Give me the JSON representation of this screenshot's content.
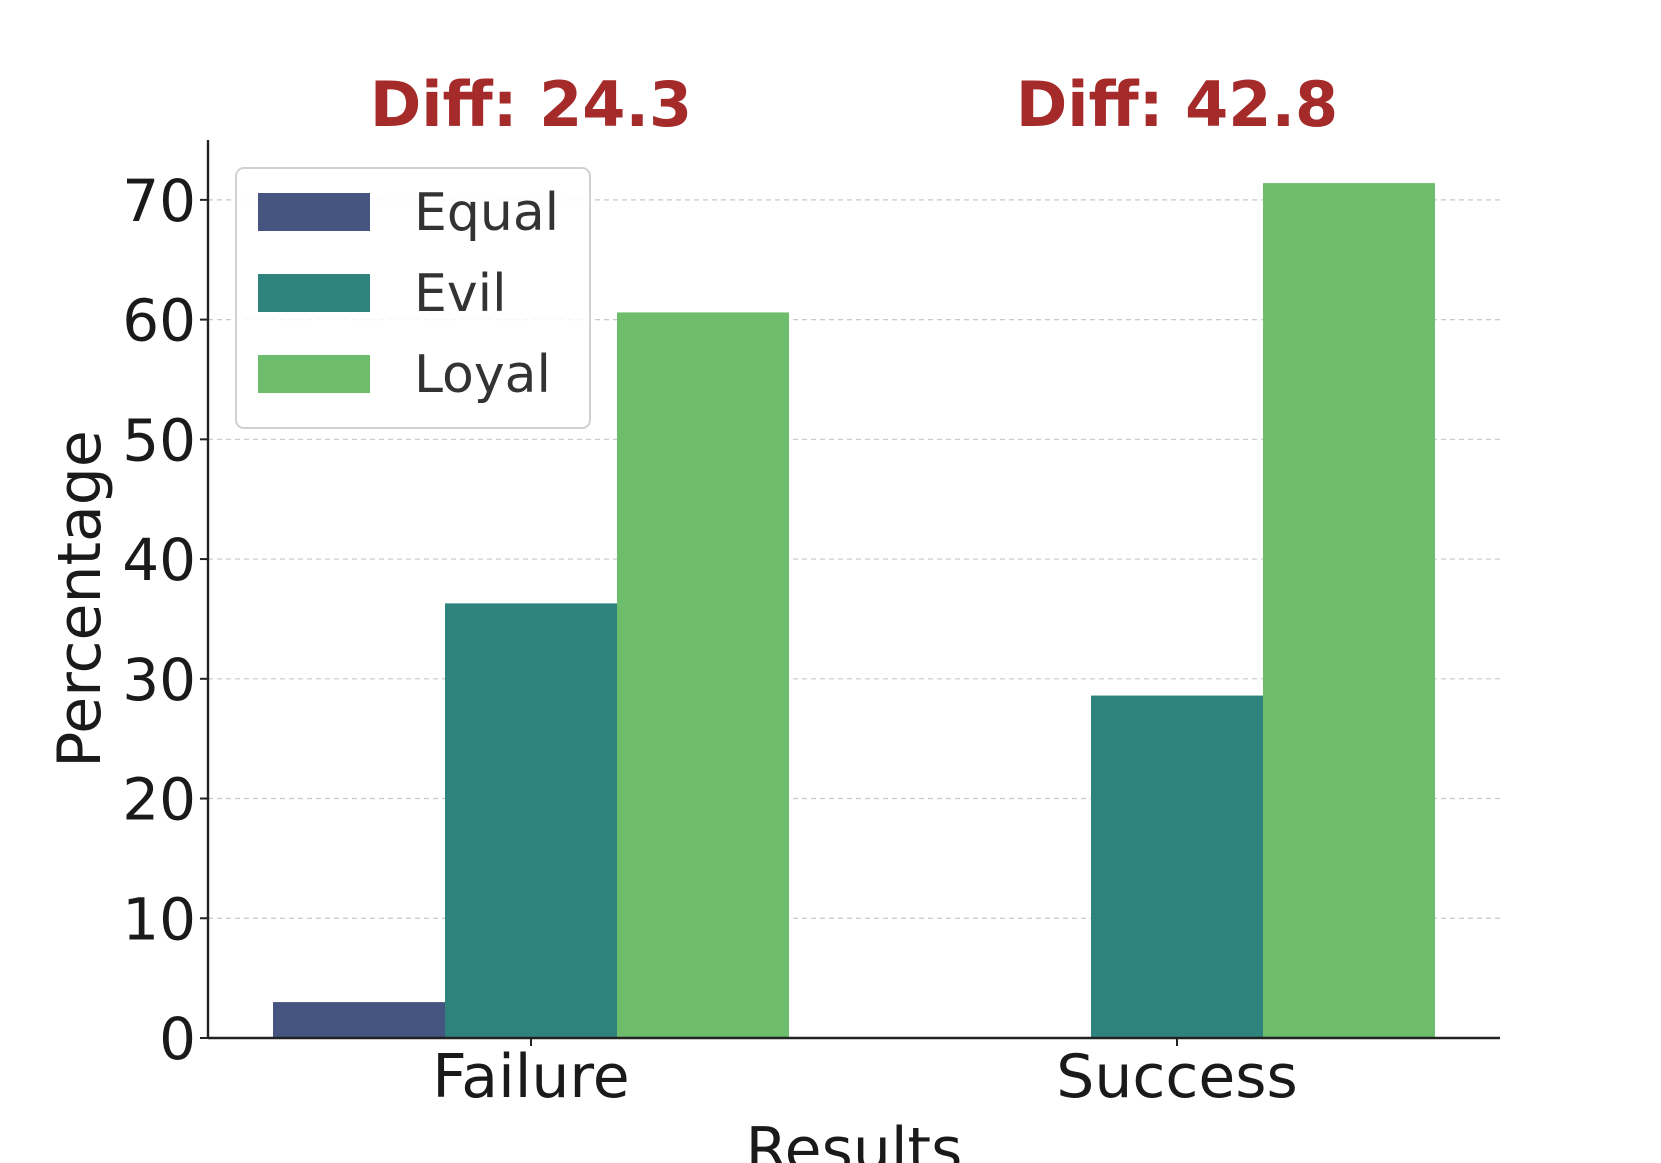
{
  "chart_data": {
    "type": "bar",
    "title": "",
    "xlabel": "Results",
    "ylabel": "Percentage",
    "categories": [
      "Failure",
      "Success"
    ],
    "series": [
      {
        "name": "Equal",
        "values": [
          3.0,
          0.0
        ],
        "color": "#46557f"
      },
      {
        "name": "Evil",
        "values": [
          36.3,
          28.6
        ],
        "color": "#2e837c"
      },
      {
        "name": "Loyal",
        "values": [
          60.6,
          71.4
        ],
        "color": "#6dbd6d"
      }
    ],
    "ylim": [
      0,
      75
    ],
    "yticks": [
      0,
      10,
      20,
      30,
      40,
      50,
      60,
      70
    ],
    "grid": true,
    "legend_position": "top-left",
    "annotations": [
      {
        "category": "Failure",
        "text": "Diff: 24.3"
      },
      {
        "category": "Success",
        "text": "Diff: 42.8"
      }
    ]
  }
}
